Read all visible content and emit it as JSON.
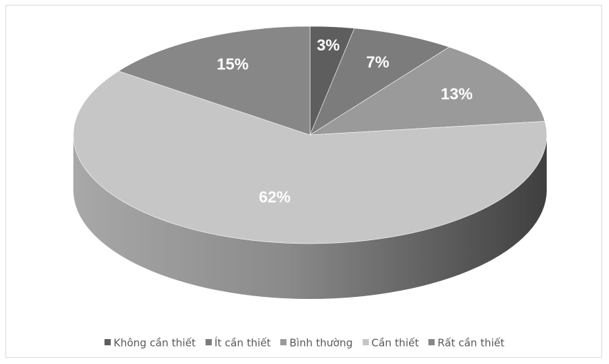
{
  "chart_data": {
    "type": "pie",
    "style": "3d",
    "categories": [
      "Không cần thiết",
      "Ít cần thiết",
      "Bình thường",
      "Cần thiết",
      "Rất cần thiết"
    ],
    "values": [
      3,
      7,
      13,
      62,
      15
    ],
    "labels": [
      "3%",
      "7%",
      "13%",
      "62%",
      "15%"
    ],
    "colors": [
      "#5e5e5e",
      "#7c7c7c",
      "#9a9a9a",
      "#c6c6c6",
      "#878787"
    ],
    "title": "",
    "legend_position": "bottom"
  }
}
